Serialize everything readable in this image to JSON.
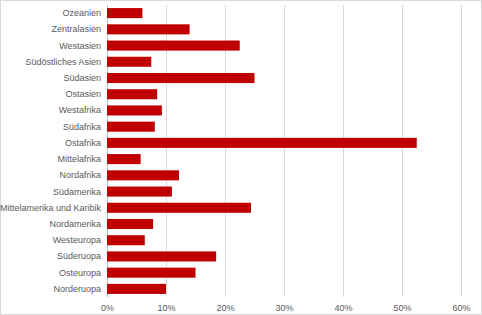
{
  "chart_data": {
    "type": "bar",
    "orientation": "horizontal",
    "categories": [
      "Ozeanien",
      "Zentralasien",
      "Westasien",
      "Südöstliches Asien",
      "Südasien",
      "Ostasien",
      "Westafrika",
      "Südafrika",
      "Ostafrika",
      "Mittelafrika",
      "Nordafrika",
      "Südamerika",
      "Mittelamerika und Karibik",
      "Nordamerika",
      "Westeuropa",
      "Süderuopa",
      "Osteuropa",
      "Norderuopa"
    ],
    "values": [
      6,
      14,
      22.5,
      7.5,
      25,
      8.5,
      9.3,
      8.1,
      52.5,
      5.7,
      12.2,
      11,
      24.4,
      7.8,
      6.4,
      18.5,
      15,
      10
    ],
    "color": "#c00000",
    "xlim": [
      0,
      60
    ],
    "xticks": [
      {
        "value": 0,
        "label": "0%"
      },
      {
        "value": 10,
        "label": "10%"
      },
      {
        "value": 20,
        "label": "20%"
      },
      {
        "value": 30,
        "label": "30%"
      },
      {
        "value": 40,
        "label": "40%"
      },
      {
        "value": 50,
        "label": "50%"
      },
      {
        "value": 60,
        "label": "60%"
      }
    ],
    "grid": true
  }
}
